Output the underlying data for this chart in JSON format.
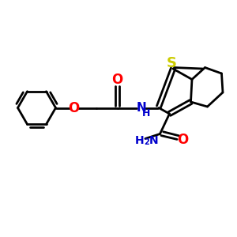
{
  "bg_color": "#ffffff",
  "bond_color": "#000000",
  "S_color": "#cccc00",
  "O_color": "#ff0000",
  "N_color": "#0000cc",
  "line_width": 2.0,
  "figsize": [
    3.0,
    3.0
  ],
  "dpi": 100,
  "xlim": [
    0,
    10
  ],
  "ylim": [
    0,
    10
  ]
}
